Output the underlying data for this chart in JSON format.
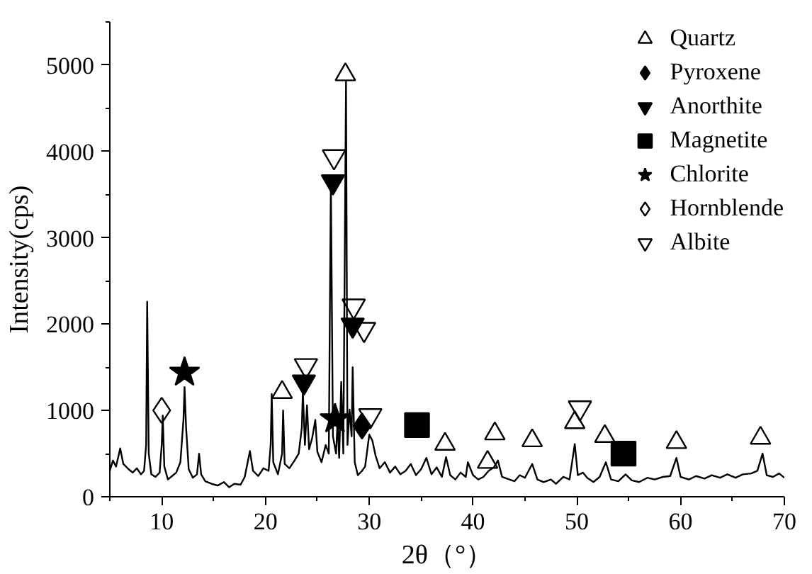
{
  "chart_data": {
    "type": "scatter",
    "xlabel": "2θ（°）",
    "ylabel": "Intensity(cps)",
    "xlim": [
      5,
      70
    ],
    "xticks": [
      10,
      20,
      30,
      40,
      50,
      60,
      70
    ],
    "ylim": [
      0,
      5500
    ],
    "yticks": [
      0,
      1000,
      2000,
      3000,
      4000,
      5000
    ],
    "grid": false,
    "legend": "top right",
    "series": [
      {
        "type": "line",
        "color": "#000000",
        "marker": "none",
        "line_style": "solid",
        "x": [
          5.0,
          5.3,
          5.6,
          6.0,
          6.3,
          6.8,
          7.2,
          7.6,
          8.0,
          8.3,
          8.5,
          8.6,
          8.75,
          9.0,
          9.4,
          9.8,
          10.0,
          10.1,
          10.25,
          10.6,
          11.0,
          11.4,
          11.8,
          12.1,
          12.2,
          12.35,
          12.6,
          13.0,
          13.4,
          13.6,
          13.8,
          14.2,
          14.8,
          15.4,
          16.0,
          16.5,
          17.0,
          17.6,
          18.0,
          18.5,
          18.8,
          19.3,
          19.8,
          20.3,
          20.5,
          20.6,
          20.75,
          21.2,
          21.6,
          21.7,
          21.85,
          22.3,
          22.8,
          23.2,
          23.5,
          23.6,
          23.8,
          24.0,
          24.2,
          24.5,
          24.8,
          25.0,
          25.4,
          25.8,
          26.1,
          26.3,
          26.5,
          26.8,
          26.95,
          27.1,
          27.3,
          27.5,
          27.76,
          27.9,
          28.1,
          28.3,
          28.4,
          28.6,
          28.9,
          29.3,
          29.6,
          30.0,
          30.3,
          30.6,
          31.0,
          31.5,
          32.0,
          32.5,
          33.0,
          33.5,
          34.0,
          34.5,
          35.0,
          35.5,
          36.0,
          36.5,
          37.0,
          37.4,
          37.8,
          38.3,
          38.8,
          39.3,
          39.5,
          40.0,
          40.5,
          41.0,
          41.5,
          42.0,
          42.4,
          42.8,
          43.5,
          44.0,
          44.5,
          45.0,
          45.7,
          46.2,
          46.8,
          47.5,
          48.0,
          48.7,
          49.3,
          49.8,
          50.1,
          50.6,
          51.0,
          51.6,
          52.2,
          52.8,
          53.3,
          54.0,
          54.7,
          55.3,
          56.0,
          56.8,
          57.5,
          58.3,
          59.0,
          59.6,
          60.0,
          60.8,
          61.5,
          62.3,
          63.0,
          63.8,
          64.5,
          65.3,
          66.0,
          66.8,
          67.4,
          67.9,
          68.3,
          68.9,
          69.5,
          70.0
        ],
        "values": [
          300,
          420,
          350,
          560,
          380,
          320,
          280,
          330,
          260,
          300,
          600,
          2260,
          500,
          260,
          230,
          280,
          600,
          940,
          350,
          200,
          240,
          280,
          400,
          900,
          1270,
          800,
          320,
          220,
          260,
          500,
          260,
          180,
          150,
          130,
          170,
          110,
          150,
          140,
          230,
          530,
          300,
          240,
          330,
          300,
          600,
          1190,
          400,
          260,
          500,
          1000,
          380,
          330,
          420,
          500,
          800,
          1220,
          600,
          1060,
          550,
          680,
          890,
          520,
          400,
          600,
          500,
          3650,
          700,
          500,
          890,
          450,
          1330,
          500,
          4810,
          600,
          1010,
          700,
          1500,
          400,
          250,
          300,
          350,
          720,
          650,
          480,
          330,
          400,
          280,
          350,
          260,
          300,
          380,
          250,
          320,
          450,
          260,
          340,
          230,
          460,
          250,
          200,
          280,
          230,
          400,
          250,
          200,
          230,
          300,
          340,
          420,
          230,
          200,
          180,
          250,
          220,
          380,
          200,
          170,
          200,
          150,
          230,
          200,
          610,
          250,
          280,
          220,
          170,
          230,
          400,
          200,
          180,
          260,
          190,
          170,
          220,
          200,
          230,
          240,
          450,
          230,
          200,
          240,
          210,
          250,
          220,
          260,
          220,
          260,
          270,
          300,
          500,
          250,
          230,
          270,
          220
        ]
      },
      {
        "name": "Quartz",
        "color": "#000000",
        "marker": "triangle_open",
        "x": [
          21.6,
          27.7,
          37.3,
          41.4,
          42.1,
          45.7,
          49.8,
          52.7,
          59.6,
          67.7
        ],
        "values": [
          1210,
          4890,
          610,
          400,
          730,
          650,
          860,
          700,
          630,
          680
        ]
      },
      {
        "name": "Pyroxene",
        "color": "#000000",
        "marker": "diamond",
        "x": [
          29.3
        ],
        "values": [
          820
        ]
      },
      {
        "name": "Anorthite",
        "color": "#000000",
        "marker": "triangle_down",
        "x": [
          23.7,
          26.5,
          28.4
        ],
        "values": [
          1330,
          3650,
          1990
        ]
      },
      {
        "name": "Magnetite",
        "color": "#000000",
        "marker": "square",
        "x": [
          34.6,
          54.5
        ],
        "values": [
          830,
          500
        ]
      },
      {
        "name": "Chlorite",
        "color": "#000000",
        "marker": "star",
        "x": [
          12.2,
          26.7
        ],
        "values": [
          1440,
          900
        ]
      },
      {
        "name": "Hornblende",
        "color": "#000000",
        "marker": "diamond_open",
        "x": [
          10.0
        ],
        "values": [
          1000
        ]
      },
      {
        "name": "Albite",
        "color": "#000000",
        "marker": "triangle_down_open",
        "x": [
          23.9,
          26.6,
          28.5,
          29.5,
          30.1,
          50.3
        ],
        "values": [
          1520,
          3940,
          2210,
          1940,
          940,
          1030
        ]
      }
    ]
  }
}
